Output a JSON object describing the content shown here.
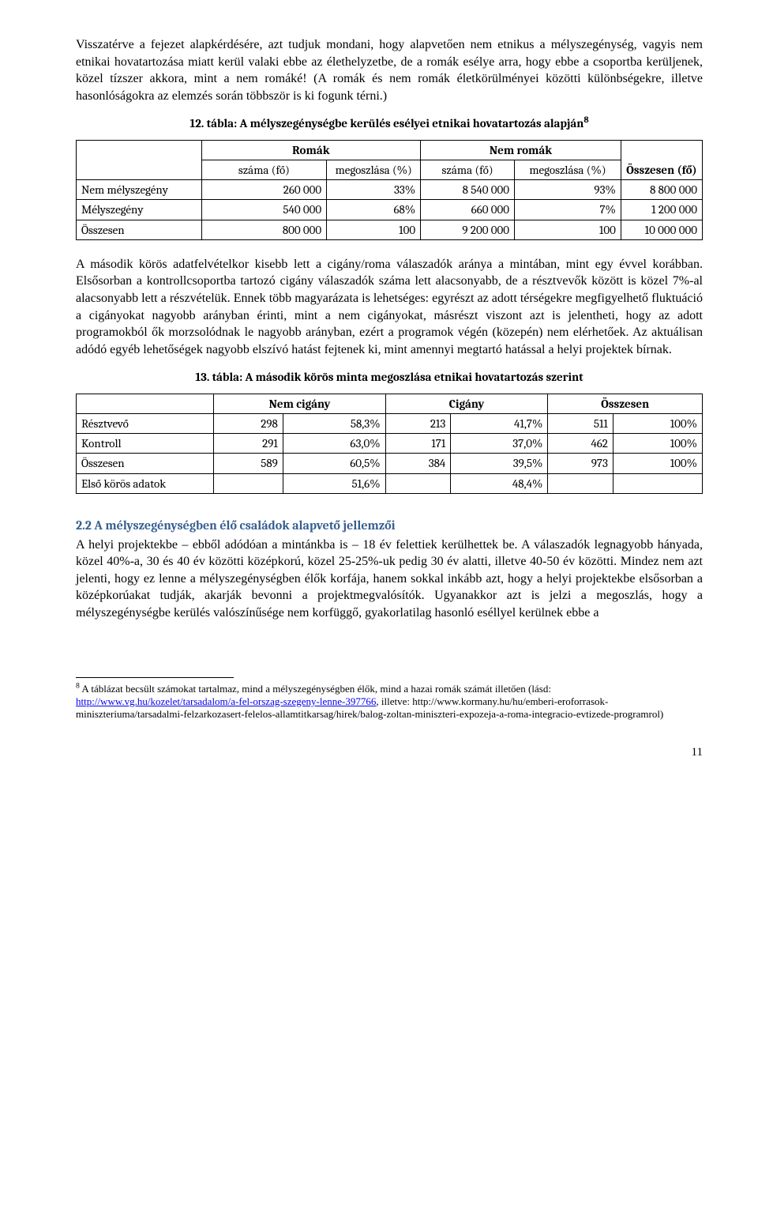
{
  "paragraph1": "Visszatérve a fejezet alapkérdésére, azt tudjuk mondani, hogy alapvetően nem etnikus a mélyszegénység, vagyis nem etnikai hovatartozása miatt kerül valaki ebbe az élethelyzetbe, de a romák esélye arra, hogy ebbe a csoportba kerüljenek, közel tízszer akkora, mint a nem romáké! (A romák és nem romák életkörülményei közötti különbségekre, illetve hasonlóságokra az elemzés során többször is ki fogunk térni.)",
  "table12": {
    "caption_pre": "12. tábla: A mélyszegénységbe kerülés esélyei etnikai hovatartozás alapján",
    "caption_sup": "8",
    "header_top": {
      "romak": "Romák",
      "nemromak": "Nem romák",
      "ossz": "Összesen (fő)"
    },
    "header_sub": {
      "szama": "száma (fő)",
      "megoszlasa": "megoszlása (%)"
    },
    "rows": [
      {
        "label": "Nem mélyszegény",
        "r_szama": "260 000",
        "r_meg": "33%",
        "nr_szama": "8 540 000",
        "nr_meg": "93%",
        "ossz": "8 800 000"
      },
      {
        "label": "Mélyszegény",
        "r_szama": "540 000",
        "r_meg": "68%",
        "nr_szama": "660 000",
        "nr_meg": "7%",
        "ossz": "1 200 000"
      },
      {
        "label": "Összesen",
        "r_szama": "800 000",
        "r_meg": "100",
        "nr_szama": "9 200 000",
        "nr_meg": "100",
        "ossz": "10 000 000"
      }
    ]
  },
  "paragraph2": "A második körös adatfelvételkor kisebb lett a cigány/roma válaszadók aránya a mintában, mint egy évvel korábban. Elsősorban a kontrollcsoportba tartozó cigány válaszadók száma lett alacsonyabb, de a résztvevők között is közel 7%-al alacsonyabb lett a részvételük. Ennek több magyarázata is lehetséges: egyrészt az adott térségekre megfigyelhető fluktuáció a cigányokat nagyobb arányban érinti, mint a nem cigányokat, másrészt viszont azt is jelentheti, hogy az adott programokból ők morzsolódnak le nagyobb arányban, ezért a programok végén (közepén) nem elérhetőek. Az aktuálisan adódó egyéb lehetőségek nagyobb elszívó hatást fejtenek ki, mint amennyi megtartó hatással a helyi projektek bírnak.",
  "table13": {
    "caption": "13. tábla: A második körös minta megoszlása etnikai hovatartozás szerint",
    "header": {
      "nc": "Nem cigány",
      "c": "Cigány",
      "ossz": "Összesen"
    },
    "rows": [
      {
        "label": "Résztvevő",
        "nc_n": "298",
        "nc_p": "58,3%",
        "c_n": "213",
        "c_p": "41,7%",
        "o_n": "511",
        "o_p": "100%"
      },
      {
        "label": "Kontroll",
        "nc_n": "291",
        "nc_p": "63,0%",
        "c_n": "171",
        "c_p": "37,0%",
        "o_n": "462",
        "o_p": "100%"
      },
      {
        "label": "Összesen",
        "nc_n": "589",
        "nc_p": "60,5%",
        "c_n": "384",
        "c_p": "39,5%",
        "o_n": "973",
        "o_p": "100%"
      }
    ],
    "first_round": {
      "label": "Első körös adatok",
      "nc_p": "51,6%",
      "c_p": "48,4%"
    }
  },
  "section_heading": "2.2 A mélyszegénységben élő családok alapvető jellemzői",
  "paragraph3": "A helyi projektekbe – ebből adódóan a mintánkba is – 18 év felettiek kerülhettek be. A válaszadók legnagyobb hányada, közel 40%-a, 30 és 40 év közötti középkorú, közel 25-25%-uk pedig 30 év alatti, illetve 40-50 év közötti. Mindez nem azt jelenti, hogy ez lenne a mélyszegénységben élők korfája, hanem sokkal inkább azt, hogy a helyi projektekbe elsősorban a középkorúakat tudják, akarják bevonni a projektmegvalósítók. Ugyanakkor azt is jelzi a megoszlás, hogy a mélyszegénységbe kerülés valószínűsége nem korfüggő, gyakorlatilag hasonló eséllyel kerülnek ebbe a",
  "footnote": {
    "num": "8",
    "text1": " A táblázat becsült számokat tartalmaz, mind a mélyszegénységben élők, mind a hazai romák számát illetően (lásd: ",
    "link1": "http://www.vg.hu/kozelet/tarsadalom/a-fel-orszag-szegeny-lenne-397766",
    "text2": ", illetve: http://www.kormany.hu/hu/emberi-eroforrasok-miniszteriuma/tarsadalmi-felzarkozasert-felelos-allamtitkarsag/hirek/balog-zoltan-miniszteri-expozeja-a-roma-integracio-evtizede-programrol)"
  },
  "page_number": "11"
}
